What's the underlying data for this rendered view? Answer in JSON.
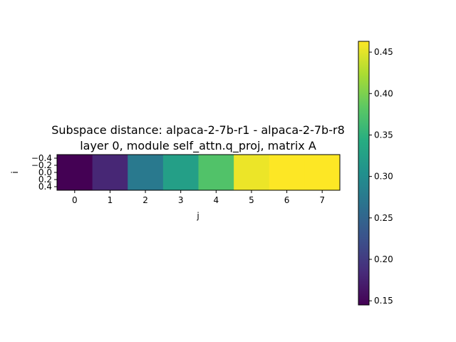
{
  "chart_data": {
    "type": "heatmap",
    "title_line1": "Subspace distance: alpaca-2-7b-r1 - alpaca-2-7b-r8",
    "title_line2": "layer 0, module self_attn.q_proj, matrix A",
    "xlabel": "j",
    "ylabel": "i",
    "x_ticks": [
      "0",
      "1",
      "2",
      "3",
      "4",
      "5",
      "6",
      "7"
    ],
    "y_ticks": [
      "−0.4",
      "−0.2",
      "0.0",
      "0.2",
      "0.4"
    ],
    "y_tick_values": [
      -0.4,
      -0.2,
      0.0,
      0.2,
      0.4
    ],
    "ylim": [
      -0.5,
      0.5
    ],
    "values": [
      [
        0.145,
        0.18,
        0.275,
        0.325,
        0.375,
        0.455,
        0.463,
        0.463
      ]
    ],
    "colormap": "viridis",
    "colorbar": {
      "min": 0.145,
      "max": 0.463,
      "ticks": [
        "0.15",
        "0.20",
        "0.25",
        "0.30",
        "0.35",
        "0.40",
        "0.45"
      ],
      "tick_values": [
        0.15,
        0.2,
        0.25,
        0.3,
        0.35,
        0.4,
        0.45
      ]
    }
  }
}
